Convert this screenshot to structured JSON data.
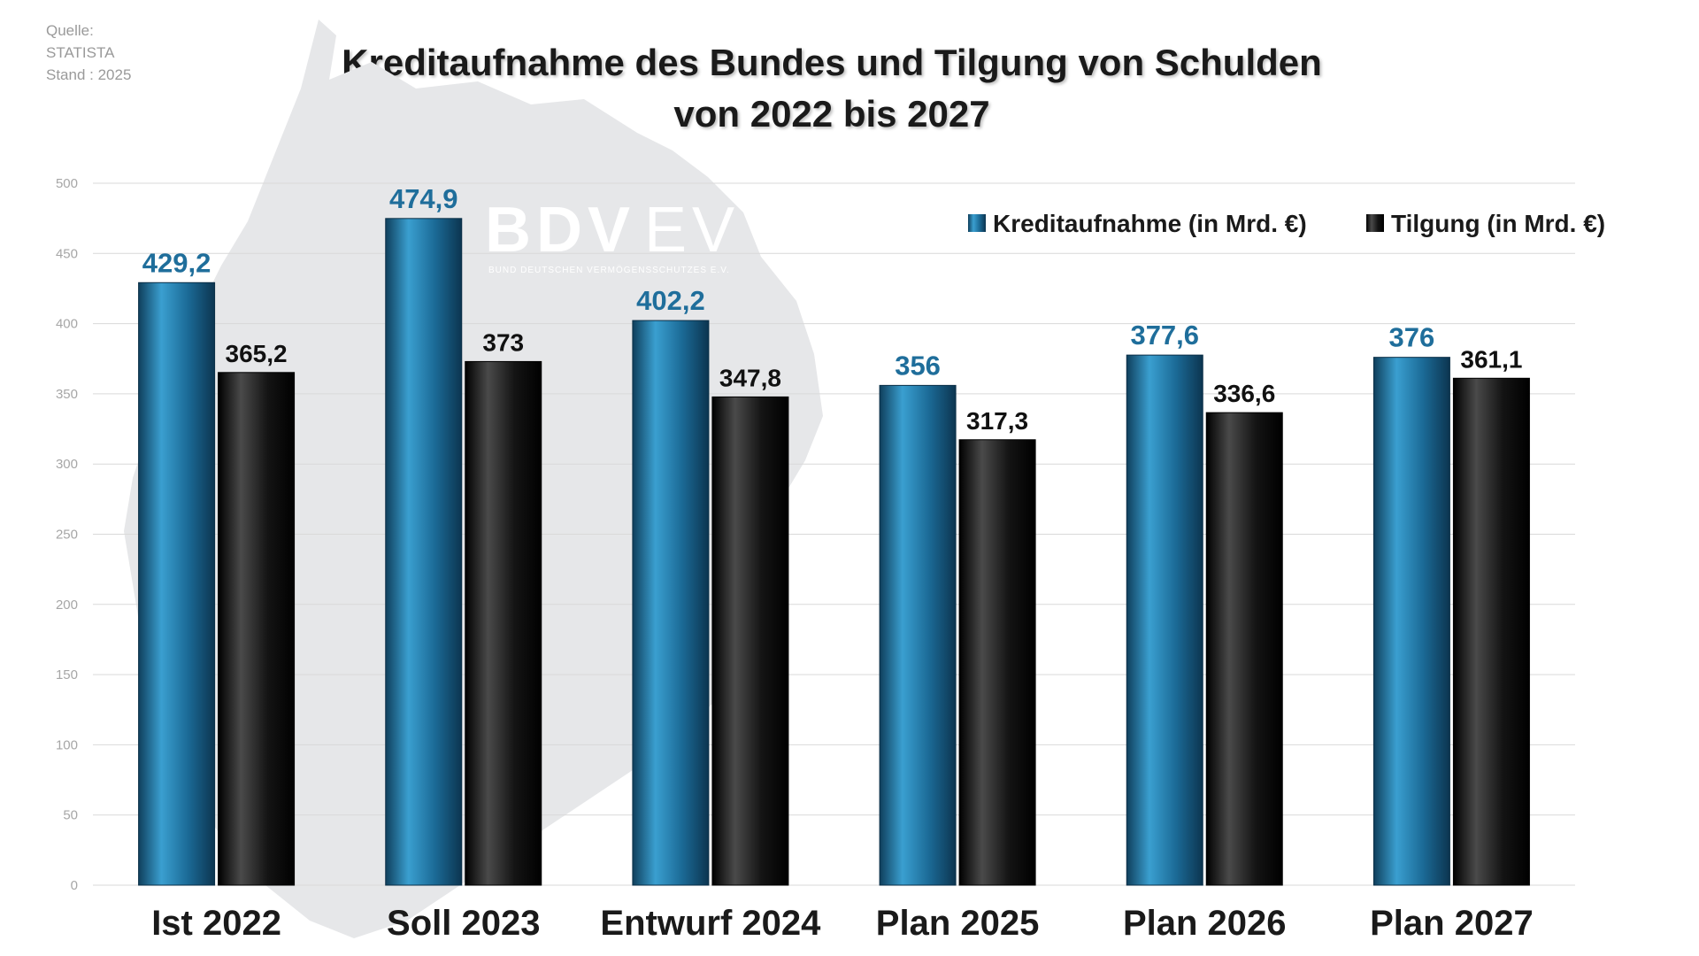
{
  "source": {
    "line1": "Quelle:",
    "line2": "STATISTA",
    "line3": "Stand : 2025"
  },
  "watermark": {
    "brand_bold": "BDV",
    "brand_light": "EV",
    "tagline": "BUND DEUTSCHEN VERMÖGENSSCHUTZES E.V."
  },
  "colors": {
    "kreditaufnahme": "#1f6e9b",
    "tilgung": "#111111",
    "map_background": "#e6e7e9"
  },
  "chart_data": {
    "type": "bar",
    "title": "Kreditaufnahme des Bundes und Tilgung von Schulden von 2022 bis 2027",
    "categories": [
      "Ist 2022",
      "Soll 2023",
      "Entwurf 2024",
      "Plan 2025",
      "Plan 2026",
      "Plan 2027"
    ],
    "series": [
      {
        "name": "Kreditaufnahme (in Mrd. €)",
        "values": [
          429.2,
          474.9,
          402.2,
          356,
          377.6,
          376
        ],
        "labels": [
          "429,2",
          "474,9",
          "402,2",
          "356",
          "377,6",
          "376"
        ]
      },
      {
        "name": "Tilgung (in Mrd. €)",
        "values": [
          365.2,
          373,
          347.8,
          317.3,
          336.6,
          361.1
        ],
        "labels": [
          "365,2",
          "373",
          "347,8",
          "317,3",
          "336,6",
          "361,1"
        ]
      }
    ],
    "ylim": [
      0,
      500
    ],
    "yticks": [
      0,
      50,
      100,
      150,
      200,
      250,
      300,
      350,
      400,
      450,
      500
    ],
    "xlabel": "",
    "ylabel": "",
    "grid": true,
    "legend_position": "top-right"
  }
}
